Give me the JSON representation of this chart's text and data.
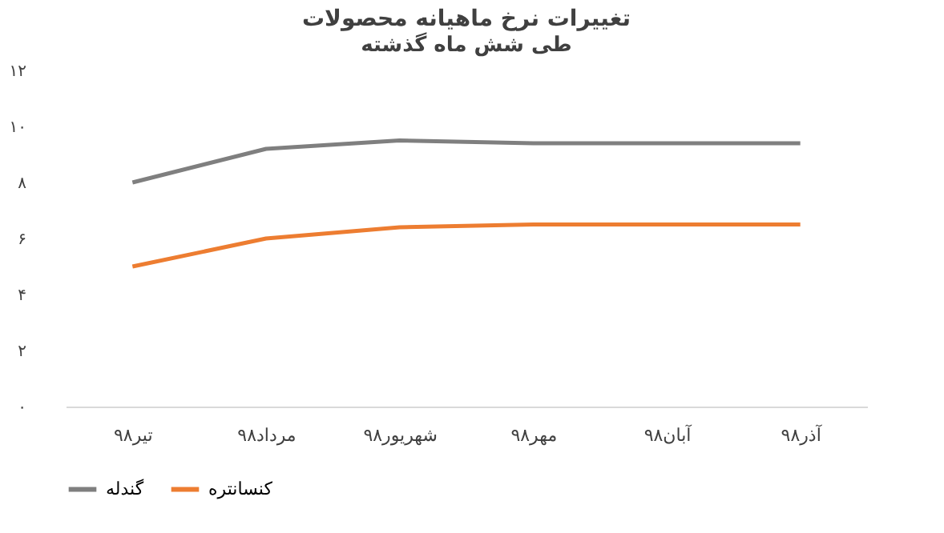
{
  "chart_data": {
    "type": "line",
    "title": "تغییرات نرخ ماهیانه محصولات",
    "subtitle": "طی شش ماه گذشته",
    "categories": [
      "تیر۹۸",
      "مرداد۹۸",
      "شهریور۹۸",
      "مهر۹۸",
      "آبان۹۸",
      "آذر۹۸"
    ],
    "series": [
      {
        "name": "گندله",
        "color": "#7f7f7f",
        "values": [
          8.0,
          9.2,
          9.5,
          9.4,
          9.4,
          9.4
        ]
      },
      {
        "name": "کنسانتره",
        "color": "#ed7d31",
        "values": [
          5.0,
          6.0,
          6.4,
          6.5,
          6.5,
          6.5
        ]
      }
    ],
    "ylim": [
      0,
      12
    ],
    "yticks": [
      {
        "value": 0,
        "label": "۰"
      },
      {
        "value": 2,
        "label": "۲"
      },
      {
        "value": 4,
        "label": "۴"
      },
      {
        "value": 6,
        "label": "۶"
      },
      {
        "value": 8,
        "label": "۸"
      },
      {
        "value": 10,
        "label": "۱۰"
      },
      {
        "value": 12,
        "label": "۱۲"
      }
    ],
    "grid": false,
    "legend": "bottom",
    "marker": "none",
    "line_style": "solid"
  }
}
